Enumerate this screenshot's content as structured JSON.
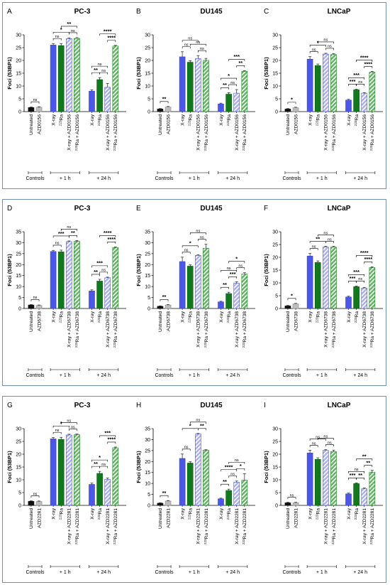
{
  "figure": {
    "groups": {
      "controls": "Controls",
      "h1": "+ 1 h",
      "h24": "+ 24 h"
    },
    "colors": {
      "untreated": "#111111",
      "inhibitor": "#bdbdbd",
      "xray": "#4d57e6",
      "ra": "#11781d",
      "xray_combo": "#a9adf3",
      "ra_combo": "#5fb45f",
      "border": "#6f8fb5"
    }
  },
  "chart_data": [
    {
      "panel": "A",
      "title": "PC-3",
      "type": "bar",
      "ylabel": "Foci (53BP1)",
      "ylim": [
        0,
        30
      ],
      "yticks": [
        0,
        5,
        10,
        15,
        20,
        25,
        30
      ],
      "categories": [
        "Untreated",
        "AZD0156",
        "X-ray",
        "223Ra",
        "X-ray + AZD0156",
        "223Ra + AZD0156",
        "X-ray",
        "223Ra",
        "X-ray + AZD0156",
        "223Ra + AZD0156"
      ],
      "values": [
        1.6,
        1.7,
        26.0,
        25.8,
        28.5,
        28.6,
        8.0,
        12.5,
        9.5,
        25.6
      ],
      "errors": [
        0.2,
        0.2,
        0.6,
        0.8,
        0.3,
        0.3,
        0.5,
        0.8,
        1.5,
        0.3
      ],
      "significance": [
        {
          "from": 0,
          "to": 1,
          "label": "ns"
        },
        {
          "from": 2,
          "to": 3,
          "label": "ns"
        },
        {
          "from": 3,
          "to": 5,
          "label": "**"
        },
        {
          "from": 4,
          "to": 5,
          "label": "ns"
        },
        {
          "from": 2,
          "to": 4,
          "label": "*"
        },
        {
          "from": 6,
          "to": 7,
          "label": "**"
        },
        {
          "from": 7,
          "to": 8,
          "label": "ns"
        },
        {
          "from": 6,
          "to": 8,
          "label": "ns"
        },
        {
          "from": 8,
          "to": 9,
          "label": "****"
        },
        {
          "from": 7,
          "to": 9,
          "label": "****"
        }
      ]
    },
    {
      "panel": "B",
      "title": "DU145",
      "type": "bar",
      "ylabel": "Foci (53BP1)",
      "ylim": [
        0,
        30
      ],
      "yticks": [
        0,
        5,
        10,
        15,
        20,
        25,
        30
      ],
      "categories": [
        "Untreated",
        "AZD0156",
        "X-ray",
        "223Ra",
        "X-ray + AZD0156",
        "223Ra + AZD0156",
        "X-ray",
        "223Ra",
        "X-ray + AZD0156",
        "223Ra + AZD0156"
      ],
      "values": [
        1.0,
        1.8,
        21.4,
        19.3,
        20.7,
        20.0,
        3.0,
        6.8,
        7.2,
        15.7
      ],
      "errors": [
        0.2,
        0.2,
        2.0,
        0.6,
        1.2,
        0.8,
        0.3,
        0.6,
        1.4,
        0.3
      ],
      "significance": [
        {
          "from": 0,
          "to": 1,
          "label": "**"
        },
        {
          "from": 2,
          "to": 3,
          "label": "ns"
        },
        {
          "from": 3,
          "to": 5,
          "label": "ns"
        },
        {
          "from": 4,
          "to": 5,
          "label": "ns"
        },
        {
          "from": 2,
          "to": 4,
          "label": "ns"
        },
        {
          "from": 6,
          "to": 7,
          "label": "**"
        },
        {
          "from": 7,
          "to": 8,
          "label": "ns"
        },
        {
          "from": 6,
          "to": 8,
          "label": "*"
        },
        {
          "from": 8,
          "to": 9,
          "label": "**"
        },
        {
          "from": 7,
          "to": 9,
          "label": "***"
        }
      ]
    },
    {
      "panel": "C",
      "title": "LNCaP",
      "type": "bar",
      "ylabel": "Foci (53BP1)",
      "ylim": [
        0,
        30
      ],
      "yticks": [
        0,
        5,
        10,
        15,
        20,
        25,
        30
      ],
      "categories": [
        "Untreated",
        "AZD0156",
        "X-ray",
        "223Ra",
        "X-ray + AZD0156",
        "223Ra + AZD0156",
        "X-ray",
        "223Ra",
        "X-ray + AZD0156",
        "223Ra + AZD0156"
      ],
      "values": [
        1.0,
        1.5,
        20.5,
        18.0,
        22.5,
        22.3,
        4.5,
        8.5,
        7.2,
        15.4
      ],
      "errors": [
        0.2,
        0.2,
        1.0,
        0.6,
        0.3,
        0.3,
        0.3,
        0.3,
        0.2,
        0.3
      ],
      "significance": [
        {
          "from": 0,
          "to": 1,
          "label": "*"
        },
        {
          "from": 2,
          "to": 3,
          "label": "ns"
        },
        {
          "from": 3,
          "to": 5,
          "label": "ns"
        },
        {
          "from": 4,
          "to": 5,
          "label": "ns"
        },
        {
          "from": 2,
          "to": 4,
          "label": "*"
        },
        {
          "from": 6,
          "to": 7,
          "label": "***"
        },
        {
          "from": 7,
          "to": 8,
          "label": "ns"
        },
        {
          "from": 6,
          "to": 8,
          "label": "***"
        },
        {
          "from": 8,
          "to": 9,
          "label": "****"
        },
        {
          "from": 7,
          "to": 9,
          "label": "****"
        }
      ]
    },
    {
      "panel": "D",
      "title": "PC-3",
      "type": "bar",
      "ylabel": "Foci (53BP1)",
      "ylim": [
        0,
        35
      ],
      "yticks": [
        0,
        5,
        10,
        15,
        20,
        25,
        30,
        35
      ],
      "categories": [
        "Untreated",
        "AZD6738",
        "X-ray",
        "223Ra",
        "X-ray + AZD6738",
        "223Ra + AZD6738",
        "X-ray",
        "223Ra",
        "X-ray + AZD6738",
        "223Ra + AZD6738"
      ],
      "values": [
        1.6,
        1.4,
        26.0,
        25.8,
        30.5,
        30.7,
        8.0,
        12.5,
        14.0,
        27.8
      ],
      "errors": [
        0.2,
        0.2,
        0.5,
        0.8,
        0.3,
        0.3,
        0.5,
        0.8,
        0.3,
        0.3
      ],
      "significance": [
        {
          "from": 0,
          "to": 1,
          "label": "ns"
        },
        {
          "from": 2,
          "to": 3,
          "label": "ns"
        },
        {
          "from": 3,
          "to": 5,
          "label": "ns"
        },
        {
          "from": 4,
          "to": 5,
          "label": "**"
        },
        {
          "from": 2,
          "to": 4,
          "label": "***"
        },
        {
          "from": 6,
          "to": 7,
          "label": "**"
        },
        {
          "from": 7,
          "to": 8,
          "label": "ns"
        },
        {
          "from": 6,
          "to": 8,
          "label": "***"
        },
        {
          "from": 8,
          "to": 9,
          "label": "****"
        },
        {
          "from": 7,
          "to": 9,
          "label": "****"
        }
      ]
    },
    {
      "panel": "E",
      "title": "DU145",
      "type": "bar",
      "ylabel": "Foci (53BP1)",
      "ylim": [
        0,
        35
      ],
      "yticks": [
        0,
        5,
        10,
        15,
        20,
        25,
        30,
        35
      ],
      "categories": [
        "Untreated",
        "AZD6738",
        "X-ray",
        "223Ra",
        "X-ray + AZD6738",
        "223Ra + AZD6738",
        "X-ray",
        "223Ra",
        "X-ray + AZD6738",
        "223Ra + AZD6738"
      ],
      "values": [
        1.0,
        1.6,
        21.4,
        19.3,
        24.2,
        27.5,
        3.0,
        6.8,
        11.5,
        15.7
      ],
      "errors": [
        0.2,
        0.2,
        2.0,
        0.6,
        0.3,
        1.8,
        0.3,
        0.6,
        0.7,
        0.6
      ],
      "significance": [
        {
          "from": 0,
          "to": 1,
          "label": "**"
        },
        {
          "from": 2,
          "to": 3,
          "label": "ns"
        },
        {
          "from": 3,
          "to": 5,
          "label": "ns"
        },
        {
          "from": 4,
          "to": 5,
          "label": "ns"
        },
        {
          "from": 2,
          "to": 4,
          "label": "*"
        },
        {
          "from": 6,
          "to": 7,
          "label": "**"
        },
        {
          "from": 7,
          "to": 8,
          "label": "***"
        },
        {
          "from": 6,
          "to": 8,
          "label": "ns"
        },
        {
          "from": 8,
          "to": 9,
          "label": "ns"
        },
        {
          "from": 7,
          "to": 9,
          "label": "*"
        }
      ]
    },
    {
      "panel": "F",
      "title": "LNCaP",
      "type": "bar",
      "ylabel": "Foci (53BP1)",
      "ylim": [
        0,
        30
      ],
      "yticks": [
        0,
        5,
        10,
        15,
        20,
        25,
        30
      ],
      "categories": [
        "Untreated",
        "AZD6738",
        "X-ray",
        "223Ra",
        "X-ray + AZD6738",
        "223Ra + AZD6738",
        "X-ray",
        "223Ra",
        "X-ray + AZD6738",
        "223Ra + AZD6738"
      ],
      "values": [
        1.0,
        1.8,
        20.5,
        18.0,
        24.0,
        24.0,
        4.5,
        8.5,
        8.0,
        16.0
      ],
      "errors": [
        0.2,
        0.2,
        1.0,
        0.6,
        0.3,
        0.3,
        0.3,
        0.3,
        0.2,
        0.3
      ],
      "significance": [
        {
          "from": 0,
          "to": 1,
          "label": "*"
        },
        {
          "from": 2,
          "to": 3,
          "label": "ns"
        },
        {
          "from": 3,
          "to": 5,
          "label": "ns"
        },
        {
          "from": 4,
          "to": 5,
          "label": "ns"
        },
        {
          "from": 2,
          "to": 4,
          "label": "**"
        },
        {
          "from": 6,
          "to": 7,
          "label": "***"
        },
        {
          "from": 7,
          "to": 8,
          "label": "ns"
        },
        {
          "from": 6,
          "to": 8,
          "label": "***"
        },
        {
          "from": 8,
          "to": 9,
          "label": "****"
        },
        {
          "from": 7,
          "to": 9,
          "label": "****"
        }
      ]
    },
    {
      "panel": "G",
      "title": "PC-3",
      "type": "bar",
      "ylabel": "Foci (53BP1)",
      "ylim": [
        0,
        30
      ],
      "yticks": [
        0,
        5,
        10,
        15,
        20,
        25,
        30
      ],
      "categories": [
        "Untreated",
        "AZD2281",
        "X-ray",
        "223Ra",
        "X-ray + AZD2281",
        "223Ra + AZD2281",
        "X-ray",
        "223Ra",
        "X-ray + AZD2281",
        "223Ra + AZD2281"
      ],
      "values": [
        1.6,
        1.5,
        26.0,
        25.8,
        27.5,
        27.6,
        8.2,
        12.5,
        10.2,
        22.5
      ],
      "errors": [
        0.2,
        0.2,
        0.5,
        0.8,
        0.3,
        0.3,
        0.5,
        0.8,
        0.5,
        0.3
      ],
      "significance": [
        {
          "from": 0,
          "to": 1,
          "label": "ns"
        },
        {
          "from": 2,
          "to": 3,
          "label": "ns"
        },
        {
          "from": 3,
          "to": 5,
          "label": "ns"
        },
        {
          "from": 4,
          "to": 5,
          "label": "ns"
        },
        {
          "from": 2,
          "to": 4,
          "label": "*"
        },
        {
          "from": 6,
          "to": 7,
          "label": "**"
        },
        {
          "from": 7,
          "to": 8,
          "label": "ns"
        },
        {
          "from": 6,
          "to": 8,
          "label": "*"
        },
        {
          "from": 8,
          "to": 9,
          "label": "****"
        },
        {
          "from": 7,
          "to": 9,
          "label": "***"
        }
      ]
    },
    {
      "panel": "H",
      "title": "DU145",
      "type": "bar",
      "ylabel": "Foci (53BP1)",
      "ylim": [
        0,
        35
      ],
      "yticks": [
        0,
        5,
        10,
        15,
        20,
        25,
        30,
        35
      ],
      "categories": [
        "Untreated",
        "AZD2281",
        "X-ray",
        "223Ra",
        "X-ray + AZD2281",
        "223Ra + AZD2281",
        "X-ray",
        "223Ra",
        "X-ray + AZD2281",
        "223Ra + AZD2281"
      ],
      "values": [
        1.0,
        2.0,
        21.4,
        19.3,
        32.5,
        25.2,
        3.0,
        6.8,
        10.5,
        11.5
      ],
      "errors": [
        0.2,
        0.2,
        2.0,
        0.6,
        0.3,
        0.2,
        0.3,
        0.6,
        0.6,
        3.0
      ],
      "significance": [
        {
          "from": 0,
          "to": 1,
          "label": "**"
        },
        {
          "from": 2,
          "to": 3,
          "label": "ns"
        },
        {
          "from": 3,
          "to": 5,
          "label": "ns"
        },
        {
          "from": 4,
          "to": 5,
          "label": "**"
        },
        {
          "from": 2,
          "to": 4,
          "label": "*"
        },
        {
          "from": 6,
          "to": 7,
          "label": "**"
        },
        {
          "from": 7,
          "to": 8,
          "label": "ns"
        },
        {
          "from": 6,
          "to": 8,
          "label": "****"
        },
        {
          "from": 8,
          "to": 9,
          "label": "*"
        },
        {
          "from": 7,
          "to": 9,
          "label": "ns"
        }
      ]
    },
    {
      "panel": "I",
      "title": "LNCaP",
      "type": "bar",
      "ylabel": "Foci (53BP1)",
      "ylim": [
        0,
        30
      ],
      "yticks": [
        0,
        5,
        10,
        15,
        20,
        25,
        30
      ],
      "categories": [
        "Untreated",
        "AZD2281",
        "X-ray",
        "223Ra",
        "X-ray + AZD2281",
        "223Ra + AZD2281",
        "X-ray",
        "223Ra",
        "X-ray + AZD2281",
        "223Ra + AZD2281"
      ],
      "values": [
        1.0,
        1.0,
        20.5,
        18.0,
        21.5,
        21.0,
        4.5,
        8.5,
        6.5,
        13.0
      ],
      "errors": [
        0.2,
        0.2,
        1.0,
        0.6,
        0.3,
        0.6,
        0.3,
        0.3,
        0.3,
        0.7
      ],
      "significance": [
        {
          "from": 0,
          "to": 1,
          "label": "ns"
        },
        {
          "from": 2,
          "to": 3,
          "label": "ns"
        },
        {
          "from": 3,
          "to": 5,
          "label": "ns"
        },
        {
          "from": 4,
          "to": 5,
          "label": "ns"
        },
        {
          "from": 2,
          "to": 4,
          "label": "ns"
        },
        {
          "from": 6,
          "to": 7,
          "label": "***"
        },
        {
          "from": 7,
          "to": 8,
          "label": "**"
        },
        {
          "from": 6,
          "to": 8,
          "label": "ns"
        },
        {
          "from": 8,
          "to": 9,
          "label": "**"
        },
        {
          "from": 7,
          "to": 9,
          "label": "**"
        }
      ]
    }
  ]
}
